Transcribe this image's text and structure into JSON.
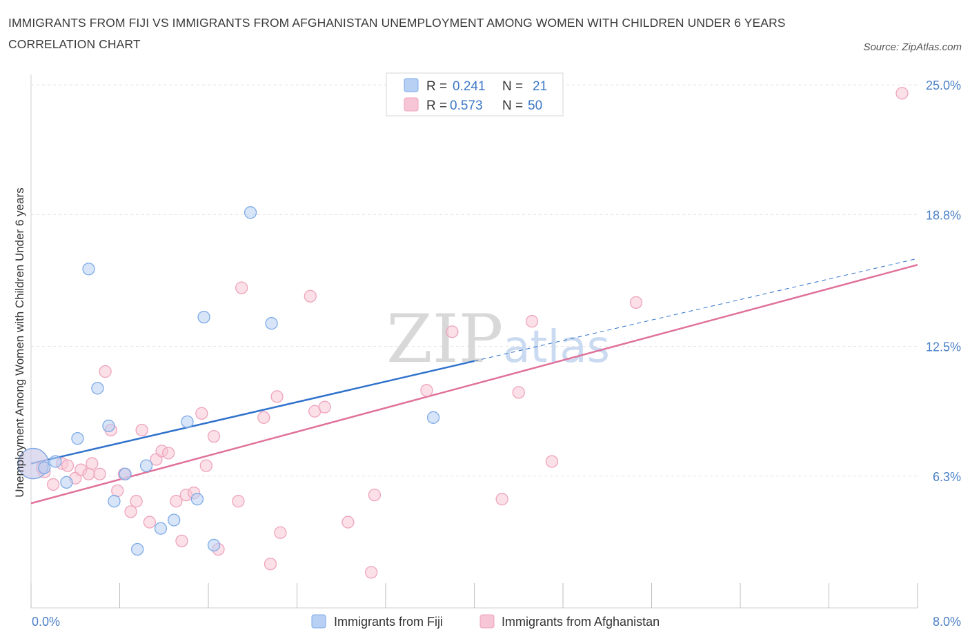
{
  "title": "IMMIGRANTS FROM FIJI VS IMMIGRANTS FROM AFGHANISTAN UNEMPLOYMENT AMONG WOMEN WITH CHILDREN UNDER 6 YEARS CORRELATION CHART",
  "source": "Source: ZipAtlas.com",
  "watermark": "ZIPatlas",
  "chart_data": {
    "type": "scatter",
    "title": "IMMIGRANTS FROM FIJI VS IMMIGRANTS FROM AFGHANISTAN UNEMPLOYMENT AMONG WOMEN WITH CHILDREN UNDER 6 YEARS CORRELATION CHART",
    "xlabel": "",
    "ylabel": "Unemployment Among Women with Children Under 6 years",
    "xlim": [
      0,
      8
    ],
    "ylim": [
      0,
      25.5
    ],
    "x_tick_labels": [
      "0.0%",
      "8.0%"
    ],
    "y_ticks": [
      6.3,
      12.5,
      18.8,
      25.0
    ],
    "y_tick_labels": [
      "6.3%",
      "12.5%",
      "18.8%",
      "25.0%"
    ],
    "grid": true,
    "legend_position": "top-center",
    "series": [
      {
        "name": "Immigrants from Fiji",
        "color": "#7baae8",
        "fill": "#b8d0f3",
        "R": "0.241",
        "N": "21",
        "trend": {
          "x0": 0.0,
          "y0": 6.9,
          "x1": 4.0,
          "y1": 11.8,
          "dash_to_x": 8.0,
          "dash_to_y": 16.7,
          "color": "#2f72cc"
        },
        "points": [
          {
            "x": 0.02,
            "y": 6.9,
            "big": true
          },
          {
            "x": 0.12,
            "y": 6.7
          },
          {
            "x": 0.22,
            "y": 7.0
          },
          {
            "x": 0.32,
            "y": 6.0
          },
          {
            "x": 0.42,
            "y": 8.1
          },
          {
            "x": 0.52,
            "y": 16.2
          },
          {
            "x": 0.6,
            "y": 10.5
          },
          {
            "x": 0.7,
            "y": 8.7
          },
          {
            "x": 0.75,
            "y": 5.1
          },
          {
            "x": 0.85,
            "y": 6.4
          },
          {
            "x": 0.96,
            "y": 2.8
          },
          {
            "x": 1.04,
            "y": 6.8
          },
          {
            "x": 1.17,
            "y": 3.8
          },
          {
            "x": 1.29,
            "y": 4.2
          },
          {
            "x": 1.41,
            "y": 8.9
          },
          {
            "x": 1.5,
            "y": 5.2
          },
          {
            "x": 1.56,
            "y": 13.9
          },
          {
            "x": 1.65,
            "y": 3.0
          },
          {
            "x": 1.98,
            "y": 18.9
          },
          {
            "x": 2.17,
            "y": 13.6
          },
          {
            "x": 3.63,
            "y": 9.1
          }
        ]
      },
      {
        "name": "Immigrants from Afghanistan",
        "color": "#eea3bd",
        "fill": "#f7c6d6",
        "R": "0.573",
        "N": "50",
        "trend": {
          "x0": 0.0,
          "y0": 5.0,
          "x1": 8.0,
          "y1": 16.4,
          "color": "#e0719a"
        },
        "points": [
          {
            "x": 0.02,
            "y": 6.9,
            "big": true
          },
          {
            "x": 0.12,
            "y": 6.5
          },
          {
            "x": 0.2,
            "y": 5.9
          },
          {
            "x": 0.28,
            "y": 6.9
          },
          {
            "x": 0.33,
            "y": 6.8
          },
          {
            "x": 0.4,
            "y": 6.2
          },
          {
            "x": 0.45,
            "y": 6.6
          },
          {
            "x": 0.52,
            "y": 6.4
          },
          {
            "x": 0.55,
            "y": 6.9
          },
          {
            "x": 0.62,
            "y": 6.4
          },
          {
            "x": 0.67,
            "y": 11.3
          },
          {
            "x": 0.72,
            "y": 8.5
          },
          {
            "x": 0.78,
            "y": 5.6
          },
          {
            "x": 0.84,
            "y": 6.4
          },
          {
            "x": 0.9,
            "y": 4.6
          },
          {
            "x": 0.95,
            "y": 5.1
          },
          {
            "x": 1.0,
            "y": 8.5
          },
          {
            "x": 1.07,
            "y": 4.1
          },
          {
            "x": 1.13,
            "y": 7.1
          },
          {
            "x": 1.18,
            "y": 7.5
          },
          {
            "x": 1.24,
            "y": 7.4
          },
          {
            "x": 1.31,
            "y": 5.1
          },
          {
            "x": 1.36,
            "y": 3.2
          },
          {
            "x": 1.4,
            "y": 5.4
          },
          {
            "x": 1.47,
            "y": 5.5
          },
          {
            "x": 1.54,
            "y": 9.3
          },
          {
            "x": 1.58,
            "y": 6.8
          },
          {
            "x": 1.65,
            "y": 8.2
          },
          {
            "x": 1.69,
            "y": 2.8
          },
          {
            "x": 1.87,
            "y": 5.1
          },
          {
            "x": 1.9,
            "y": 15.3
          },
          {
            "x": 2.1,
            "y": 9.1
          },
          {
            "x": 2.16,
            "y": 2.1
          },
          {
            "x": 2.22,
            "y": 10.1
          },
          {
            "x": 2.25,
            "y": 3.6
          },
          {
            "x": 2.52,
            "y": 14.9
          },
          {
            "x": 2.56,
            "y": 9.4
          },
          {
            "x": 2.65,
            "y": 9.6
          },
          {
            "x": 2.86,
            "y": 4.1
          },
          {
            "x": 3.07,
            "y": 1.7
          },
          {
            "x": 3.1,
            "y": 5.4
          },
          {
            "x": 3.57,
            "y": 10.4
          },
          {
            "x": 3.8,
            "y": 13.2
          },
          {
            "x": 4.25,
            "y": 5.2
          },
          {
            "x": 4.4,
            "y": 10.3
          },
          {
            "x": 4.52,
            "y": 13.7
          },
          {
            "x": 4.7,
            "y": 7.0
          },
          {
            "x": 5.46,
            "y": 14.6
          },
          {
            "x": 7.86,
            "y": 24.6
          },
          {
            "x": 0.1,
            "y": 6.7
          }
        ]
      }
    ]
  }
}
